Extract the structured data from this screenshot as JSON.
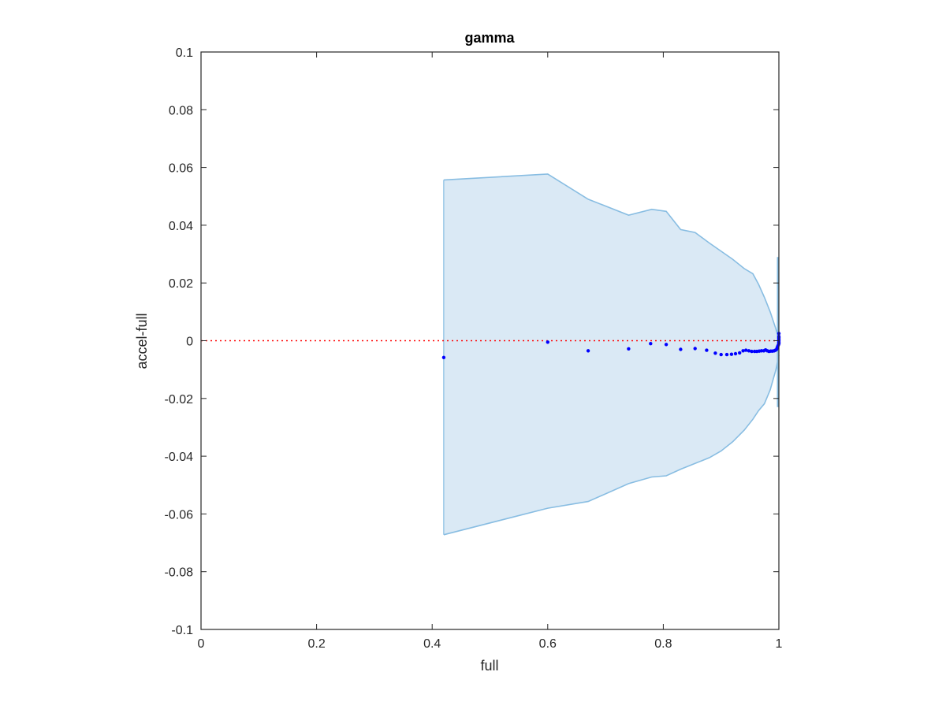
{
  "chart_data": {
    "type": "scatter",
    "title": "gamma",
    "xlabel": "full",
    "ylabel": "accel-full",
    "xlim": [
      0,
      1
    ],
    "ylim": [
      -0.1,
      0.1
    ],
    "x_ticks": [
      0,
      0.2,
      0.4,
      0.6,
      0.8,
      1
    ],
    "x_tick_labels": [
      "0",
      "0.2",
      "0.4",
      "0.6",
      "0.8",
      "1"
    ],
    "y_ticks": [
      -0.1,
      -0.08,
      -0.06,
      -0.04,
      -0.02,
      0,
      0.02,
      0.04,
      0.06,
      0.08,
      0.1
    ],
    "y_tick_labels": [
      "-0.1",
      "-0.08",
      "-0.06",
      "-0.04",
      "-0.02",
      "0",
      "0.02",
      "0.04",
      "0.06",
      "0.08",
      "0.1"
    ],
    "grid": false,
    "reference_line": {
      "y": 0,
      "style": "dotted",
      "color": "#ff0000"
    },
    "band": {
      "color": "#dae9f5",
      "edge_color": "#88bde2",
      "upper": [
        [
          0.42,
          0.0557
        ],
        [
          0.6,
          0.0577
        ],
        [
          0.67,
          0.049
        ],
        [
          0.74,
          0.0435
        ],
        [
          0.78,
          0.0455
        ],
        [
          0.805,
          0.0448
        ],
        [
          0.83,
          0.0385
        ],
        [
          0.855,
          0.0375
        ],
        [
          0.88,
          0.0338
        ],
        [
          0.9,
          0.031
        ],
        [
          0.92,
          0.0282
        ],
        [
          0.94,
          0.025
        ],
        [
          0.955,
          0.0232
        ],
        [
          0.965,
          0.0195
        ],
        [
          0.975,
          0.015
        ],
        [
          0.985,
          0.01
        ],
        [
          0.995,
          0.004
        ],
        [
          1.0,
          0.0
        ]
      ],
      "lower": [
        [
          0.42,
          -0.0672
        ],
        [
          0.6,
          -0.058
        ],
        [
          0.67,
          -0.0557
        ],
        [
          0.74,
          -0.0495
        ],
        [
          0.78,
          -0.0472
        ],
        [
          0.805,
          -0.0468
        ],
        [
          0.83,
          -0.0445
        ],
        [
          0.855,
          -0.0425
        ],
        [
          0.88,
          -0.0405
        ],
        [
          0.9,
          -0.0382
        ],
        [
          0.92,
          -0.035
        ],
        [
          0.94,
          -0.031
        ],
        [
          0.955,
          -0.0272
        ],
        [
          0.965,
          -0.0242
        ],
        [
          0.975,
          -0.0218
        ],
        [
          0.985,
          -0.017
        ],
        [
          0.995,
          -0.01
        ],
        [
          1.0,
          -0.005
        ]
      ],
      "edge_segment": {
        "x": 1.0,
        "y": [
          -0.023,
          0.029
        ]
      }
    },
    "series": [
      {
        "color": "#0000ff",
        "x": [
          0.42,
          0.6,
          0.67,
          0.74,
          0.778,
          0.805,
          0.83,
          0.855,
          0.875,
          0.89,
          0.9,
          0.91,
          0.918,
          0.925,
          0.932,
          0.938,
          0.943,
          0.948,
          0.953,
          0.958,
          0.962,
          0.966,
          0.97,
          0.974,
          0.977,
          0.98,
          0.983,
          0.986,
          0.989,
          0.992,
          0.994,
          0.996,
          0.997,
          0.998,
          0.999,
          1.0,
          1.0,
          1.0,
          1.0,
          1.0,
          1.0,
          1.0
        ],
        "y": [
          -0.0058,
          -0.0005,
          -0.0035,
          -0.0028,
          -0.001,
          -0.0013,
          -0.003,
          -0.0027,
          -0.0033,
          -0.0043,
          -0.0048,
          -0.0048,
          -0.0047,
          -0.0045,
          -0.0042,
          -0.0035,
          -0.0033,
          -0.0035,
          -0.0037,
          -0.0037,
          -0.0037,
          -0.0036,
          -0.0035,
          -0.0035,
          -0.0032,
          -0.0035,
          -0.0037,
          -0.0036,
          -0.0036,
          -0.0035,
          -0.0033,
          -0.003,
          -0.0025,
          -0.002,
          -0.0015,
          -0.001,
          -0.0005,
          0.0,
          0.0005,
          0.001,
          0.0015,
          0.0025
        ]
      }
    ]
  }
}
